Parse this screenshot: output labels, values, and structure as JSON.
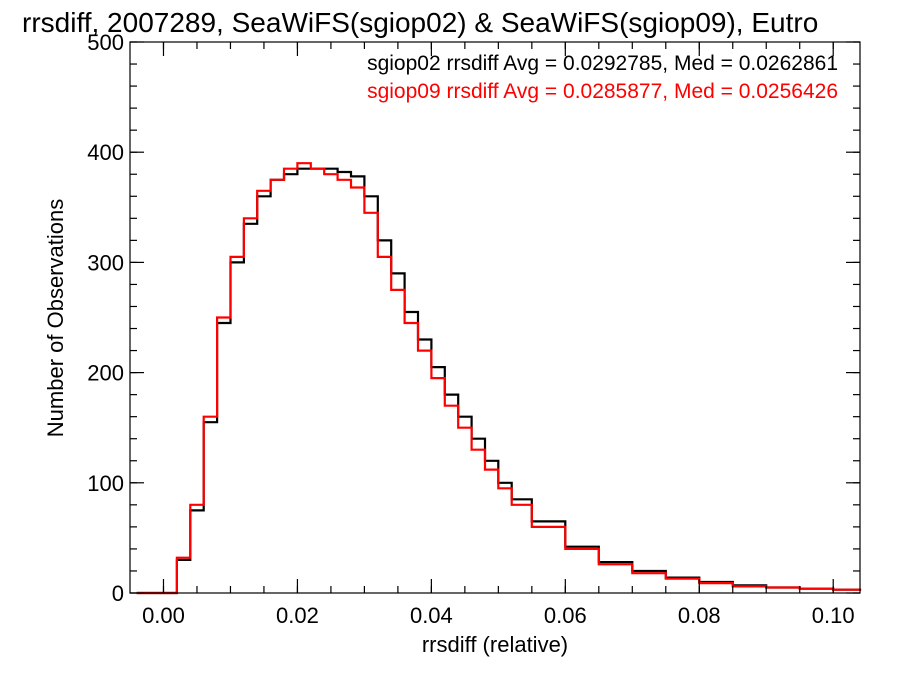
{
  "chart_data": {
    "type": "line",
    "title": "rrsdiff, 2007289, SeaWiFS(sgiop02) & SeaWiFS(sgiop09), Eutro",
    "xlabel": "rrsdiff (relative)",
    "ylabel": "Number of Observations",
    "xlim": [
      -0.005,
      0.104
    ],
    "ylim": [
      0,
      500
    ],
    "x_ticks": [
      "0.00",
      "0.02",
      "0.04",
      "0.06",
      "0.08",
      "0.10"
    ],
    "y_ticks": [
      "0",
      "100",
      "200",
      "300",
      "400",
      "500"
    ],
    "x_tick_values": [
      0.0,
      0.02,
      0.04,
      0.06,
      0.08,
      0.1
    ],
    "y_tick_values": [
      0,
      100,
      200,
      300,
      400,
      500
    ],
    "grid": false,
    "step": true,
    "annotations": [
      {
        "text": "sgiop02 rrsdiff Avg = 0.0292785, Med = 0.0262861",
        "color": "#000000"
      },
      {
        "text": "sgiop09 rrsdiff Avg = 0.0285877, Med = 0.0256426",
        "color": "#ff0000"
      }
    ],
    "x": [
      -0.004,
      0.0,
      0.002,
      0.004,
      0.006,
      0.008,
      0.01,
      0.012,
      0.014,
      0.016,
      0.018,
      0.02,
      0.022,
      0.024,
      0.026,
      0.028,
      0.03,
      0.032,
      0.034,
      0.036,
      0.038,
      0.04,
      0.042,
      0.044,
      0.046,
      0.048,
      0.05,
      0.052,
      0.055,
      0.06,
      0.065,
      0.07,
      0.075,
      0.08,
      0.085,
      0.09,
      0.095,
      0.1,
      0.104
    ],
    "series": [
      {
        "name": "sgiop02",
        "color": "#000000",
        "values": [
          0,
          0,
          30,
          75,
          155,
          245,
          300,
          335,
          360,
          375,
          380,
          385,
          385,
          385,
          382,
          378,
          360,
          320,
          290,
          255,
          230,
          205,
          180,
          160,
          140,
          120,
          100,
          85,
          65,
          42,
          28,
          20,
          14,
          10,
          7,
          5,
          4,
          3,
          2
        ]
      },
      {
        "name": "sgiop09",
        "color": "#ff0000",
        "values": [
          0,
          0,
          32,
          80,
          160,
          250,
          305,
          340,
          365,
          375,
          385,
          390,
          385,
          380,
          375,
          368,
          345,
          305,
          275,
          245,
          220,
          195,
          170,
          150,
          130,
          112,
          95,
          80,
          60,
          40,
          26,
          18,
          13,
          9,
          6,
          5,
          4,
          3,
          2
        ]
      }
    ]
  }
}
